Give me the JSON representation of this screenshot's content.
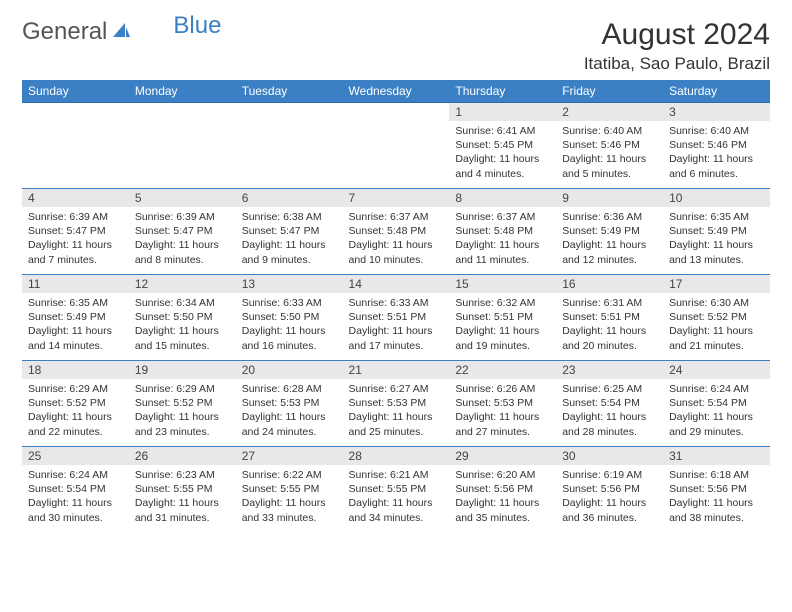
{
  "logo": {
    "part1": "General",
    "part2": "Blue"
  },
  "title": "August 2024",
  "location": "Itatiba, Sao Paulo, Brazil",
  "colors": {
    "header_bg": "#3b7fc4",
    "header_text": "#ffffff",
    "daynum_bg": "#e8e8e8",
    "row_divider": "#3b7fc4",
    "background": "#ffffff",
    "body_text": "#333333"
  },
  "typography": {
    "month_title_fontsize": 30,
    "location_fontsize": 17,
    "day_header_fontsize": 12,
    "cell_fontsize": 10.5
  },
  "day_headers": [
    "Sunday",
    "Monday",
    "Tuesday",
    "Wednesday",
    "Thursday",
    "Friday",
    "Saturday"
  ],
  "weeks": [
    [
      {
        "date": "",
        "sunrise": "",
        "sunset": "",
        "daylight": ""
      },
      {
        "date": "",
        "sunrise": "",
        "sunset": "",
        "daylight": ""
      },
      {
        "date": "",
        "sunrise": "",
        "sunset": "",
        "daylight": ""
      },
      {
        "date": "",
        "sunrise": "",
        "sunset": "",
        "daylight": ""
      },
      {
        "date": "1",
        "sunrise": "Sunrise: 6:41 AM",
        "sunset": "Sunset: 5:45 PM",
        "daylight": "Daylight: 11 hours and 4 minutes."
      },
      {
        "date": "2",
        "sunrise": "Sunrise: 6:40 AM",
        "sunset": "Sunset: 5:46 PM",
        "daylight": "Daylight: 11 hours and 5 minutes."
      },
      {
        "date": "3",
        "sunrise": "Sunrise: 6:40 AM",
        "sunset": "Sunset: 5:46 PM",
        "daylight": "Daylight: 11 hours and 6 minutes."
      }
    ],
    [
      {
        "date": "4",
        "sunrise": "Sunrise: 6:39 AM",
        "sunset": "Sunset: 5:47 PM",
        "daylight": "Daylight: 11 hours and 7 minutes."
      },
      {
        "date": "5",
        "sunrise": "Sunrise: 6:39 AM",
        "sunset": "Sunset: 5:47 PM",
        "daylight": "Daylight: 11 hours and 8 minutes."
      },
      {
        "date": "6",
        "sunrise": "Sunrise: 6:38 AM",
        "sunset": "Sunset: 5:47 PM",
        "daylight": "Daylight: 11 hours and 9 minutes."
      },
      {
        "date": "7",
        "sunrise": "Sunrise: 6:37 AM",
        "sunset": "Sunset: 5:48 PM",
        "daylight": "Daylight: 11 hours and 10 minutes."
      },
      {
        "date": "8",
        "sunrise": "Sunrise: 6:37 AM",
        "sunset": "Sunset: 5:48 PM",
        "daylight": "Daylight: 11 hours and 11 minutes."
      },
      {
        "date": "9",
        "sunrise": "Sunrise: 6:36 AM",
        "sunset": "Sunset: 5:49 PM",
        "daylight": "Daylight: 11 hours and 12 minutes."
      },
      {
        "date": "10",
        "sunrise": "Sunrise: 6:35 AM",
        "sunset": "Sunset: 5:49 PM",
        "daylight": "Daylight: 11 hours and 13 minutes."
      }
    ],
    [
      {
        "date": "11",
        "sunrise": "Sunrise: 6:35 AM",
        "sunset": "Sunset: 5:49 PM",
        "daylight": "Daylight: 11 hours and 14 minutes."
      },
      {
        "date": "12",
        "sunrise": "Sunrise: 6:34 AM",
        "sunset": "Sunset: 5:50 PM",
        "daylight": "Daylight: 11 hours and 15 minutes."
      },
      {
        "date": "13",
        "sunrise": "Sunrise: 6:33 AM",
        "sunset": "Sunset: 5:50 PM",
        "daylight": "Daylight: 11 hours and 16 minutes."
      },
      {
        "date": "14",
        "sunrise": "Sunrise: 6:33 AM",
        "sunset": "Sunset: 5:51 PM",
        "daylight": "Daylight: 11 hours and 17 minutes."
      },
      {
        "date": "15",
        "sunrise": "Sunrise: 6:32 AM",
        "sunset": "Sunset: 5:51 PM",
        "daylight": "Daylight: 11 hours and 19 minutes."
      },
      {
        "date": "16",
        "sunrise": "Sunrise: 6:31 AM",
        "sunset": "Sunset: 5:51 PM",
        "daylight": "Daylight: 11 hours and 20 minutes."
      },
      {
        "date": "17",
        "sunrise": "Sunrise: 6:30 AM",
        "sunset": "Sunset: 5:52 PM",
        "daylight": "Daylight: 11 hours and 21 minutes."
      }
    ],
    [
      {
        "date": "18",
        "sunrise": "Sunrise: 6:29 AM",
        "sunset": "Sunset: 5:52 PM",
        "daylight": "Daylight: 11 hours and 22 minutes."
      },
      {
        "date": "19",
        "sunrise": "Sunrise: 6:29 AM",
        "sunset": "Sunset: 5:52 PM",
        "daylight": "Daylight: 11 hours and 23 minutes."
      },
      {
        "date": "20",
        "sunrise": "Sunrise: 6:28 AM",
        "sunset": "Sunset: 5:53 PM",
        "daylight": "Daylight: 11 hours and 24 minutes."
      },
      {
        "date": "21",
        "sunrise": "Sunrise: 6:27 AM",
        "sunset": "Sunset: 5:53 PM",
        "daylight": "Daylight: 11 hours and 25 minutes."
      },
      {
        "date": "22",
        "sunrise": "Sunrise: 6:26 AM",
        "sunset": "Sunset: 5:53 PM",
        "daylight": "Daylight: 11 hours and 27 minutes."
      },
      {
        "date": "23",
        "sunrise": "Sunrise: 6:25 AM",
        "sunset": "Sunset: 5:54 PM",
        "daylight": "Daylight: 11 hours and 28 minutes."
      },
      {
        "date": "24",
        "sunrise": "Sunrise: 6:24 AM",
        "sunset": "Sunset: 5:54 PM",
        "daylight": "Daylight: 11 hours and 29 minutes."
      }
    ],
    [
      {
        "date": "25",
        "sunrise": "Sunrise: 6:24 AM",
        "sunset": "Sunset: 5:54 PM",
        "daylight": "Daylight: 11 hours and 30 minutes."
      },
      {
        "date": "26",
        "sunrise": "Sunrise: 6:23 AM",
        "sunset": "Sunset: 5:55 PM",
        "daylight": "Daylight: 11 hours and 31 minutes."
      },
      {
        "date": "27",
        "sunrise": "Sunrise: 6:22 AM",
        "sunset": "Sunset: 5:55 PM",
        "daylight": "Daylight: 11 hours and 33 minutes."
      },
      {
        "date": "28",
        "sunrise": "Sunrise: 6:21 AM",
        "sunset": "Sunset: 5:55 PM",
        "daylight": "Daylight: 11 hours and 34 minutes."
      },
      {
        "date": "29",
        "sunrise": "Sunrise: 6:20 AM",
        "sunset": "Sunset: 5:56 PM",
        "daylight": "Daylight: 11 hours and 35 minutes."
      },
      {
        "date": "30",
        "sunrise": "Sunrise: 6:19 AM",
        "sunset": "Sunset: 5:56 PM",
        "daylight": "Daylight: 11 hours and 36 minutes."
      },
      {
        "date": "31",
        "sunrise": "Sunrise: 6:18 AM",
        "sunset": "Sunset: 5:56 PM",
        "daylight": "Daylight: 11 hours and 38 minutes."
      }
    ]
  ]
}
